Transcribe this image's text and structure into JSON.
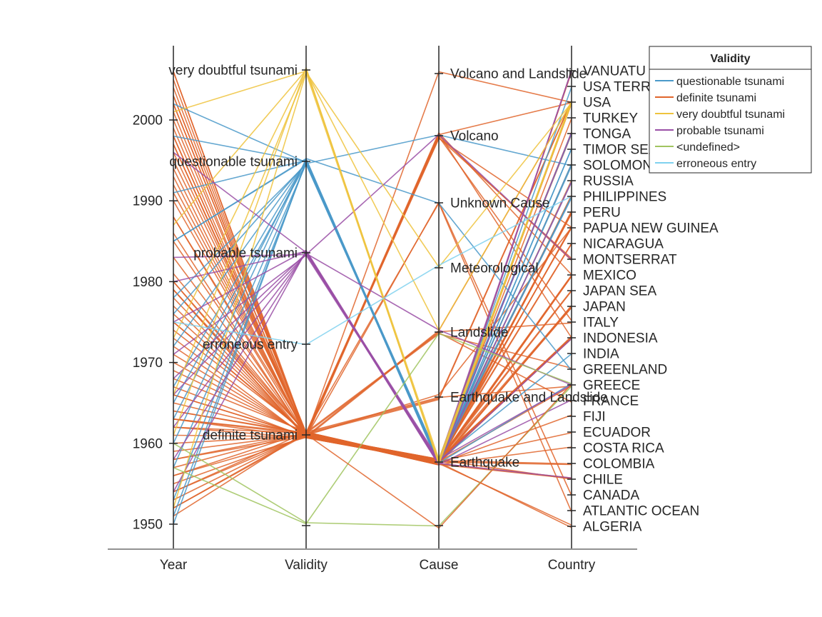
{
  "chart_data": {
    "type": "parallel_coordinates",
    "coordinates": [
      "Year",
      "Validity",
      "Cause",
      "Country"
    ],
    "year_axis": {
      "ticks": [
        1950,
        1960,
        1970,
        1980,
        1990,
        2000
      ],
      "range": [
        1947,
        2009
      ]
    },
    "validity_axis": {
      "categories": [
        "definite tsunami",
        "erroneous entry",
        "probable tsunami",
        "questionable tsunami",
        "very doubtful tsunami"
      ],
      "undefined_category": "<undefined>"
    },
    "cause_axis": {
      "categories": [
        "Earthquake",
        "Earthquake and Landslide",
        "Landslide",
        "Meteorological",
        "Unknown Cause",
        "Volcano",
        "Volcano and Landslide"
      ],
      "undefined_category": "<undefined>"
    },
    "country_axis": {
      "categories": [
        "ALGERIA",
        "ATLANTIC OCEAN",
        "CANADA",
        "CHILE",
        "COLOMBIA",
        "COSTA RICA",
        "ECUADOR",
        "FIJI",
        "FRANCE",
        "GREECE",
        "GREENLAND",
        "INDIA",
        "INDONESIA",
        "ITALY",
        "JAPAN",
        "JAPAN SEA",
        "MEXICO",
        "MONTSERRAT",
        "NICARAGUA",
        "PAPUA NEW GUINEA",
        "PERU",
        "PHILIPPINES",
        "RUSSIA",
        "SOLOMON ISLANDS",
        "TIMOR SEA",
        "TONGA",
        "TURKEY",
        "USA",
        "USA TERRITORY",
        "VANUATU"
      ]
    },
    "legend": {
      "title": "Validity",
      "position": "top-right",
      "entries": [
        {
          "label": "questionable tsunami",
          "color": "#4a99c9"
        },
        {
          "label": "definite tsunami",
          "color": "#e0652c"
        },
        {
          "label": "very doubtful tsunami",
          "color": "#eec33d"
        },
        {
          "label": "probable tsunami",
          "color": "#9a4fa6"
        },
        {
          "label": "<undefined>",
          "color": "#a0c45f"
        },
        {
          "label": "erroneous entry",
          "color": "#7fd1ef"
        }
      ]
    },
    "grid": false,
    "records": [
      {
        "year": 1951,
        "validity": "definite tsunami",
        "cause": "Earthquake",
        "country": "ALGERIA"
      },
      {
        "year": 1952,
        "validity": "definite tsunami",
        "cause": "Earthquake",
        "country": "CHILE"
      },
      {
        "year": 1953,
        "validity": "definite tsunami",
        "cause": "Earthquake",
        "country": "CHILE"
      },
      {
        "year": 1954,
        "validity": "definite tsunami",
        "cause": "Earthquake",
        "country": "JAPAN"
      },
      {
        "year": 1955,
        "validity": "definite tsunami",
        "cause": "Earthquake",
        "country": "COLOMBIA"
      },
      {
        "year": 1956,
        "validity": "definite tsunami",
        "cause": "Earthquake",
        "country": "GREECE"
      },
      {
        "year": 1957,
        "validity": "definite tsunami",
        "cause": "Earthquake",
        "country": "USA"
      },
      {
        "year": 1958,
        "validity": "definite tsunami",
        "cause": "Earthquake",
        "country": "USA"
      },
      {
        "year": 1959,
        "validity": "definite tsunami",
        "cause": "Earthquake",
        "country": "RUSSIA"
      },
      {
        "year": 1960,
        "validity": "definite tsunami",
        "cause": "Earthquake",
        "country": "CHILE"
      },
      {
        "year": 1961,
        "validity": "definite tsunami",
        "cause": "Earthquake",
        "country": "PERU"
      },
      {
        "year": 1962,
        "validity": "definite tsunami",
        "cause": "Earthquake",
        "country": "MEXICO"
      },
      {
        "year": 1963,
        "validity": "definite tsunami",
        "cause": "Earthquake",
        "country": "INDONESIA"
      },
      {
        "year": 1964,
        "validity": "definite tsunami",
        "cause": "Earthquake",
        "country": "USA"
      },
      {
        "year": 1965,
        "validity": "definite tsunami",
        "cause": "Earthquake",
        "country": "INDONESIA"
      },
      {
        "year": 1966,
        "validity": "definite tsunami",
        "cause": "Earthquake",
        "country": "PERU"
      },
      {
        "year": 1967,
        "validity": "definite tsunami",
        "cause": "Earthquake",
        "country": "ECUADOR"
      },
      {
        "year": 1968,
        "validity": "definite tsunami",
        "cause": "Earthquake",
        "country": "JAPAN"
      },
      {
        "year": 1969,
        "validity": "definite tsunami",
        "cause": "Earthquake",
        "country": "ALGERIA"
      },
      {
        "year": 1970,
        "validity": "definite tsunami",
        "cause": "Earthquake",
        "country": "PHILIPPINES"
      },
      {
        "year": 1971,
        "validity": "definite tsunami",
        "cause": "Earthquake",
        "country": "PAPUA NEW GUINEA"
      },
      {
        "year": 1972,
        "validity": "definite tsunami",
        "cause": "Earthquake",
        "country": "NICARAGUA"
      },
      {
        "year": 1973,
        "validity": "definite tsunami",
        "cause": "Earthquake",
        "country": "JAPAN"
      },
      {
        "year": 1974,
        "validity": "definite tsunami",
        "cause": "Earthquake",
        "country": "PERU"
      },
      {
        "year": 1975,
        "validity": "definite tsunami",
        "cause": "Earthquake",
        "country": "USA"
      },
      {
        "year": 1976,
        "validity": "definite tsunami",
        "cause": "Earthquake",
        "country": "PHILIPPINES"
      },
      {
        "year": 1977,
        "validity": "definite tsunami",
        "cause": "Earthquake",
        "country": "INDONESIA"
      },
      {
        "year": 1978,
        "validity": "definite tsunami",
        "cause": "Earthquake",
        "country": "MEXICO"
      },
      {
        "year": 1979,
        "validity": "definite tsunami",
        "cause": "Earthquake",
        "country": "COLOMBIA"
      },
      {
        "year": 1980,
        "validity": "definite tsunami",
        "cause": "Earthquake",
        "country": "TONGA"
      },
      {
        "year": 1981,
        "validity": "definite tsunami",
        "cause": "Earthquake",
        "country": "SOLOMON ISLANDS"
      },
      {
        "year": 1983,
        "validity": "definite tsunami",
        "cause": "Earthquake",
        "country": "JAPAN SEA"
      },
      {
        "year": 1985,
        "validity": "definite tsunami",
        "cause": "Earthquake",
        "country": "MEXICO"
      },
      {
        "year": 1986,
        "validity": "definite tsunami",
        "cause": "Earthquake",
        "country": "USA"
      },
      {
        "year": 1988,
        "validity": "definite tsunami",
        "cause": "Earthquake",
        "country": "VANUATU"
      },
      {
        "year": 1990,
        "validity": "definite tsunami",
        "cause": "Earthquake",
        "country": "PHILIPPINES"
      },
      {
        "year": 1991,
        "validity": "definite tsunami",
        "cause": "Earthquake",
        "country": "COSTA RICA"
      },
      {
        "year": 1992,
        "validity": "definite tsunami",
        "cause": "Earthquake",
        "country": "NICARAGUA"
      },
      {
        "year": 1993,
        "validity": "definite tsunami",
        "cause": "Earthquake",
        "country": "JAPAN SEA"
      },
      {
        "year": 1994,
        "validity": "definite tsunami",
        "cause": "Earthquake",
        "country": "INDONESIA"
      },
      {
        "year": 1995,
        "validity": "definite tsunami",
        "cause": "Earthquake",
        "country": "MEXICO"
      },
      {
        "year": 1996,
        "validity": "definite tsunami",
        "cause": "Earthquake",
        "country": "PERU"
      },
      {
        "year": 1997,
        "validity": "definite tsunami",
        "cause": "Earthquake",
        "country": "VANUATU"
      },
      {
        "year": 1998,
        "validity": "definite tsunami",
        "cause": "Earthquake",
        "country": "PAPUA NEW GUINEA"
      },
      {
        "year": 1999,
        "validity": "definite tsunami",
        "cause": "Earthquake",
        "country": "TURKEY"
      },
      {
        "year": 2001,
        "validity": "definite tsunami",
        "cause": "Earthquake",
        "country": "PERU"
      },
      {
        "year": 2002,
        "validity": "definite tsunami",
        "cause": "Earthquake",
        "country": "PAPUA NEW GUINEA"
      },
      {
        "year": 2003,
        "validity": "definite tsunami",
        "cause": "Earthquake",
        "country": "JAPAN"
      },
      {
        "year": 2004,
        "validity": "definite tsunami",
        "cause": "Earthquake",
        "country": "INDONESIA"
      },
      {
        "year": 2005,
        "validity": "definite tsunami",
        "cause": "Earthquake",
        "country": "INDONESIA"
      },
      {
        "year": 2006,
        "validity": "definite tsunami",
        "cause": "Earthquake",
        "country": "TONGA"
      },
      {
        "year": 1956,
        "validity": "definite tsunami",
        "cause": "Earthquake and Landslide",
        "country": "GREECE"
      },
      {
        "year": 1964,
        "validity": "definite tsunami",
        "cause": "Earthquake and Landslide",
        "country": "USA"
      },
      {
        "year": 1975,
        "validity": "definite tsunami",
        "cause": "Earthquake and Landslide",
        "country": "USA"
      },
      {
        "year": 1998,
        "validity": "definite tsunami",
        "cause": "Earthquake and Landslide",
        "country": "PAPUA NEW GUINEA"
      },
      {
        "year": 1958,
        "validity": "definite tsunami",
        "cause": "Landslide",
        "country": "USA"
      },
      {
        "year": 1963,
        "validity": "definite tsunami",
        "cause": "Landslide",
        "country": "ITALY"
      },
      {
        "year": 1979,
        "validity": "definite tsunami",
        "cause": "Landslide",
        "country": "FRANCE"
      },
      {
        "year": 2000,
        "validity": "definite tsunami",
        "cause": "Landslide",
        "country": "GREENLAND"
      },
      {
        "year": 1952,
        "validity": "definite tsunami",
        "cause": "Volcano",
        "country": "PAPUA NEW GUINEA"
      },
      {
        "year": 1966,
        "validity": "definite tsunami",
        "cause": "Volcano",
        "country": "INDONESIA"
      },
      {
        "year": 1980,
        "validity": "definite tsunami",
        "cause": "Volcano",
        "country": "USA"
      },
      {
        "year": 1997,
        "validity": "definite tsunami",
        "cause": "Volcano",
        "country": "MONTSERRAT"
      },
      {
        "year": 2002,
        "validity": "definite tsunami",
        "cause": "Volcano",
        "country": "ITALY"
      },
      {
        "year": 2003,
        "validity": "definite tsunami",
        "cause": "Volcano",
        "country": "MONTSERRAT"
      },
      {
        "year": 2006,
        "validity": "definite tsunami",
        "cause": "Volcano",
        "country": "MEXICO"
      },
      {
        "year": 1988,
        "validity": "definite tsunami",
        "cause": "Volcano and Landslide",
        "country": "USA"
      },
      {
        "year": 1979,
        "validity": "definite tsunami",
        "cause": "Unknown Cause",
        "country": "CANADA"
      },
      {
        "year": 1954,
        "validity": "definite tsunami",
        "cause": "Unknown Cause",
        "country": "ATLANTIC OCEAN"
      },
      {
        "year": 1962,
        "validity": "definite tsunami",
        "cause": "Earthquake",
        "country": "FIJI"
      },
      {
        "year": 1950,
        "validity": "questionable tsunami",
        "cause": "Earthquake",
        "country": "TIMOR SEA"
      },
      {
        "year": 1951,
        "validity": "questionable tsunami",
        "cause": "Earthquake",
        "country": "TONGA"
      },
      {
        "year": 1953,
        "validity": "questionable tsunami",
        "cause": "Earthquake",
        "country": "INDIA"
      },
      {
        "year": 1957,
        "validity": "questionable tsunami",
        "cause": "Earthquake",
        "country": "SOLOMON ISLANDS"
      },
      {
        "year": 1960,
        "validity": "questionable tsunami",
        "cause": "Earthquake",
        "country": "PHILIPPINES"
      },
      {
        "year": 1963,
        "validity": "questionable tsunami",
        "cause": "Earthquake",
        "country": "SOLOMON ISLANDS"
      },
      {
        "year": 1967,
        "validity": "questionable tsunami",
        "cause": "Earthquake",
        "country": "TIMOR SEA"
      },
      {
        "year": 1972,
        "validity": "questionable tsunami",
        "cause": "Earthquake",
        "country": "TONGA"
      },
      {
        "year": 1976,
        "validity": "questionable tsunami",
        "cause": "Earthquake",
        "country": "USA TERRITORY"
      },
      {
        "year": 1978,
        "validity": "questionable tsunami",
        "cause": "Earthquake",
        "country": "RUSSIA"
      },
      {
        "year": 1985,
        "validity": "questionable tsunami",
        "cause": "Earthquake",
        "country": "GREECE"
      },
      {
        "year": 1991,
        "validity": "questionable tsunami",
        "cause": "Earthquake",
        "country": "TONGA"
      },
      {
        "year": 1998,
        "validity": "questionable tsunami",
        "cause": "Earthquake",
        "country": "USA"
      },
      {
        "year": 2002,
        "validity": "questionable tsunami",
        "cause": "Earthquake",
        "country": "PHILIPPINES"
      },
      {
        "year": 1965,
        "validity": "questionable tsunami",
        "cause": "Volcano",
        "country": "SOLOMON ISLANDS"
      },
      {
        "year": 1985,
        "validity": "questionable tsunami",
        "cause": "Unknown Cause",
        "country": "GREENLAND"
      },
      {
        "year": 1954,
        "validity": "probable tsunami",
        "cause": "Earthquake",
        "country": "CHILE"
      },
      {
        "year": 1958,
        "validity": "probable tsunami",
        "cause": "Earthquake",
        "country": "FRANCE"
      },
      {
        "year": 1962,
        "validity": "probable tsunami",
        "cause": "Earthquake",
        "country": "GREECE"
      },
      {
        "year": 1966,
        "validity": "probable tsunami",
        "cause": "Earthquake",
        "country": "VANUATU"
      },
      {
        "year": 1971,
        "validity": "probable tsunami",
        "cause": "Earthquake",
        "country": "INDONESIA"
      },
      {
        "year": 1975,
        "validity": "probable tsunami",
        "cause": "Earthquake",
        "country": "RUSSIA"
      },
      {
        "year": 1980,
        "validity": "probable tsunami",
        "cause": "Earthquake",
        "country": "TONGA"
      },
      {
        "year": 1996,
        "validity": "probable tsunami",
        "cause": "Earthquake",
        "country": "VANUATU"
      },
      {
        "year": 1968,
        "validity": "probable tsunami",
        "cause": "Landslide",
        "country": "GREECE"
      },
      {
        "year": 1983,
        "validity": "probable tsunami",
        "cause": "Volcano",
        "country": "MONTSERRAT"
      },
      {
        "year": 1952,
        "validity": "very doubtful tsunami",
        "cause": "Earthquake",
        "country": "USA"
      },
      {
        "year": 1961,
        "validity": "very doubtful tsunami",
        "cause": "Earthquake",
        "country": "USA"
      },
      {
        "year": 1973,
        "validity": "very doubtful tsunami",
        "cause": "Earthquake",
        "country": "USA"
      },
      {
        "year": 1987,
        "validity": "very doubtful tsunami",
        "cause": "Earthquake",
        "country": "USA"
      },
      {
        "year": 2001,
        "validity": "very doubtful tsunami",
        "cause": "Landslide",
        "country": "USA"
      },
      {
        "year": 1966,
        "validity": "very doubtful tsunami",
        "cause": "Meteorological",
        "country": "USA"
      },
      {
        "year": 1960,
        "validity": "<undefined>",
        "cause": "<undefined>",
        "country": "GREECE"
      },
      {
        "year": 1957,
        "validity": "<undefined>",
        "cause": "Landslide",
        "country": "GREECE"
      },
      {
        "year": 1963,
        "validity": "definite tsunami",
        "cause": "<undefined>",
        "country": "GREECE"
      },
      {
        "year": 1975,
        "validity": "erroneous entry",
        "cause": "Meteorological",
        "country": "PHILIPPINES"
      }
    ]
  }
}
